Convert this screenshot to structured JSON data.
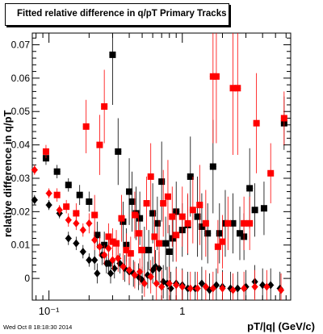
{
  "chart_data": {
    "type": "scatter",
    "title": "Fitted relative difference in q/pT  Primary Tracks",
    "xlabel": "pT/|q| (GeV/c)",
    "ylabel": "relative difference in q/pT",
    "x_scale": "log",
    "xlim": [
      0.075,
      6.5
    ],
    "ylim": [
      -0.0065,
      0.0735
    ],
    "x_tick_labels": [
      "10⁻¹",
      "1"
    ],
    "y_tick_labels": [
      "0",
      "0.01",
      "0.02",
      "0.03",
      "0.04",
      "0.05",
      "0.06",
      "0.07"
    ],
    "y_ticks": [
      0,
      0.01,
      0.02,
      0.03,
      0.04,
      0.05,
      0.06,
      0.07
    ],
    "grid": false,
    "series": [
      {
        "marker": "square",
        "color": "#000000",
        "points": [
          [
            0.095,
            0.036,
            0.002
          ],
          [
            0.115,
            0.032,
            0.002
          ],
          [
            0.14,
            0.028,
            0.002
          ],
          [
            0.17,
            0.025,
            0.003
          ],
          [
            0.2,
            0.023,
            0.003
          ],
          [
            0.23,
            0.013,
            0.004
          ],
          [
            0.26,
            0.01,
            0.004
          ],
          [
            0.28,
            0.0045,
            0.003
          ],
          [
            0.3,
            0.067,
            0.015
          ],
          [
            0.33,
            0.038,
            0.01
          ],
          [
            0.36,
            0.017,
            0.006
          ],
          [
            0.38,
            0.01,
            0.005
          ],
          [
            0.4,
            0.026,
            0.01
          ],
          [
            0.42,
            0.023,
            0.009
          ],
          [
            0.45,
            0.0195,
            0.008
          ],
          [
            0.48,
            0.018,
            0.008
          ],
          [
            0.52,
            0.0085,
            0.007
          ],
          [
            0.56,
            0.0085,
            0.006
          ],
          [
            0.6,
            0.0195,
            0.009
          ],
          [
            0.65,
            0.0165,
            0.008
          ],
          [
            0.7,
            0.029,
            0.012
          ],
          [
            0.75,
            0.0105,
            0.008
          ],
          [
            0.8,
            0.008,
            0.008
          ],
          [
            0.85,
            0.012,
            0.007
          ],
          [
            0.9,
            0.02,
            0.009
          ],
          [
            1.0,
            0.0145,
            0.008
          ],
          [
            1.1,
            0.016,
            0.009
          ],
          [
            1.15,
            0.0305,
            0.012
          ],
          [
            1.3,
            0.0185,
            0.012
          ],
          [
            1.4,
            0.0155,
            0.01
          ],
          [
            1.55,
            0.0135,
            0.009
          ],
          [
            1.7,
            0.0335,
            0.014
          ],
          [
            1.9,
            0.0135,
            0.009
          ],
          [
            2.1,
            0.0165,
            0.01
          ],
          [
            2.4,
            0.0165,
            0.009
          ],
          [
            2.7,
            0.0135,
            0.008
          ],
          [
            2.9,
            0.0125,
            0.007
          ],
          [
            3.2,
            0.027,
            0.012
          ],
          [
            3.5,
            0.0205,
            0.008
          ],
          [
            4.1,
            0.021,
            0.008
          ],
          [
            5.8,
            0.0465,
            0.008
          ]
        ]
      },
      {
        "marker": "diamond",
        "color": "#000000",
        "points": [
          [
            0.078,
            0.0235,
            0.0015
          ],
          [
            0.1,
            0.022,
            0.0015
          ],
          [
            0.12,
            0.0195,
            0.0015
          ],
          [
            0.14,
            0.012,
            0.002
          ],
          [
            0.16,
            0.0105,
            0.002
          ],
          [
            0.18,
            0.008,
            0.002
          ],
          [
            0.2,
            0.0055,
            0.002
          ],
          [
            0.22,
            0.0055,
            0.003
          ],
          [
            0.23,
            0.0015,
            0.003
          ],
          [
            0.25,
            0.007,
            0.003
          ],
          [
            0.27,
            0.0045,
            0.003
          ],
          [
            0.29,
            0.0015,
            0.003
          ],
          [
            0.31,
            0.003,
            0.003
          ],
          [
            0.34,
            0.0045,
            0.003
          ],
          [
            0.37,
            0.003,
            0.004
          ],
          [
            0.4,
            0.002,
            0.004
          ],
          [
            0.43,
            0.0015,
            0.004
          ],
          [
            0.47,
            0.0005,
            0.004
          ],
          [
            0.5,
            -0.0005,
            0.004
          ],
          [
            0.55,
            0.001,
            0.004
          ],
          [
            0.6,
            0.0025,
            0.004
          ],
          [
            0.63,
            0.0035,
            0.005
          ],
          [
            0.67,
            0.003,
            0.005
          ],
          [
            0.72,
            -0.001,
            0.005
          ],
          [
            0.77,
            -0.0015,
            0.005
          ],
          [
            0.82,
            -0.003,
            0.005
          ],
          [
            0.9,
            -0.0015,
            0.005
          ],
          [
            1.0,
            -0.002,
            0.005
          ],
          [
            1.1,
            -0.003,
            0.005
          ],
          [
            1.25,
            -0.003,
            0.005
          ],
          [
            1.4,
            -0.0015,
            0.005
          ],
          [
            1.6,
            -0.0035,
            0.005
          ],
          [
            1.8,
            -0.002,
            0.005
          ],
          [
            2.0,
            -0.0025,
            0.005
          ],
          [
            2.3,
            -0.003,
            0.005
          ],
          [
            2.6,
            -0.003,
            0.005
          ],
          [
            3.0,
            -0.0025,
            0.005
          ],
          [
            3.5,
            -0.001,
            0.005
          ],
          [
            4.0,
            -0.002,
            0.005
          ],
          [
            4.6,
            -0.002,
            0.005
          ],
          [
            5.4,
            -0.003,
            0.005
          ]
        ]
      },
      {
        "marker": "square",
        "color": "#ff0000",
        "points": [
          [
            0.095,
            0.038,
            0.002
          ],
          [
            0.115,
            0.025,
            0.002
          ],
          [
            0.135,
            0.0215,
            0.002
          ],
          [
            0.16,
            0.0195,
            0.003
          ],
          [
            0.19,
            0.0455,
            0.008
          ],
          [
            0.22,
            0.019,
            0.006
          ],
          [
            0.24,
            0.04,
            0.009
          ],
          [
            0.26,
            0.0515,
            0.011
          ],
          [
            0.28,
            0.0125,
            0.004
          ],
          [
            0.3,
            0.011,
            0.004
          ],
          [
            0.32,
            0.0105,
            0.004
          ],
          [
            0.35,
            0.018,
            0.007
          ],
          [
            0.38,
            0.0085,
            0.005
          ],
          [
            0.41,
            0.0075,
            0.005
          ],
          [
            0.44,
            0.019,
            0.007
          ],
          [
            0.47,
            0.0135,
            0.006
          ],
          [
            0.5,
            0.0085,
            0.006
          ],
          [
            0.54,
            0.0225,
            0.008
          ],
          [
            0.58,
            0.0305,
            0.01
          ],
          [
            0.62,
            0.0125,
            0.008
          ],
          [
            0.67,
            0.0105,
            0.007
          ],
          [
            0.72,
            0.0225,
            0.01
          ],
          [
            0.78,
            0.0245,
            0.011
          ],
          [
            0.84,
            0.0185,
            0.009
          ],
          [
            0.9,
            0.013,
            0.008
          ],
          [
            1.0,
            0.0185,
            0.009
          ],
          [
            1.1,
            0.0165,
            0.009
          ],
          [
            1.2,
            0.0205,
            0.01
          ],
          [
            1.35,
            0.022,
            0.012
          ],
          [
            1.5,
            0.0165,
            0.01
          ],
          [
            1.7,
            0.0605,
            0.02
          ],
          [
            1.8,
            0.0605,
            0.02
          ],
          [
            1.85,
            0.0095,
            0.008
          ],
          [
            2.0,
            0.011,
            0.008
          ],
          [
            2.2,
            0.0165,
            0.008
          ],
          [
            2.4,
            0.057,
            0.02
          ],
          [
            2.6,
            0.057,
            0.02
          ],
          [
            2.9,
            0.0165,
            0.008
          ],
          [
            3.2,
            0.0165,
            0.008
          ],
          [
            3.6,
            0.0465,
            0.015
          ],
          [
            4.6,
            0.0315,
            0.009
          ],
          [
            5.8,
            0.048,
            0.008
          ]
        ]
      },
      {
        "marker": "diamond",
        "color": "#ff0000",
        "points": [
          [
            0.078,
            0.0325,
            0.0015
          ],
          [
            0.1,
            0.0255,
            0.0015
          ],
          [
            0.12,
            0.0205,
            0.0015
          ],
          [
            0.14,
            0.0175,
            0.002
          ],
          [
            0.16,
            0.0165,
            0.002
          ],
          [
            0.18,
            0.0145,
            0.002
          ],
          [
            0.2,
            0.0165,
            0.003
          ],
          [
            0.22,
            0.0115,
            0.003
          ],
          [
            0.24,
            0.0095,
            0.003
          ],
          [
            0.26,
            0.007,
            0.003
          ],
          [
            0.28,
            0.009,
            0.003
          ],
          [
            0.3,
            0.0055,
            0.003
          ],
          [
            0.33,
            0.006,
            0.004
          ],
          [
            0.36,
            0.0035,
            0.004
          ],
          [
            0.4,
            0.0025,
            0.004
          ],
          [
            0.44,
            0.001,
            0.004
          ],
          [
            0.48,
            0.002,
            0.004
          ],
          [
            0.52,
            -0.0015,
            0.004
          ],
          [
            0.58,
            0.0005,
            0.005
          ],
          [
            0.64,
            -0.0015,
            0.005
          ],
          [
            0.7,
            -0.0025,
            0.005
          ],
          [
            0.8,
            -0.0015,
            0.005
          ],
          [
            0.9,
            -0.002,
            0.005
          ],
          [
            1.0,
            -0.0025,
            0.005
          ],
          [
            1.15,
            -0.003,
            0.005
          ],
          [
            1.3,
            -0.003,
            0.005
          ],
          [
            1.5,
            -0.0025,
            0.005
          ],
          [
            1.7,
            -0.003,
            0.005
          ],
          [
            2.0,
            -0.003,
            0.005
          ],
          [
            2.4,
            -0.0035,
            0.005
          ],
          [
            2.9,
            -0.003,
            0.005
          ],
          [
            3.5,
            -0.0025,
            0.005
          ],
          [
            4.3,
            -0.0025,
            0.005
          ],
          [
            5.5,
            -0.0035,
            0.005
          ]
        ]
      }
    ]
  },
  "timestamp": "Wed Oct  8 18:18:30 2014"
}
